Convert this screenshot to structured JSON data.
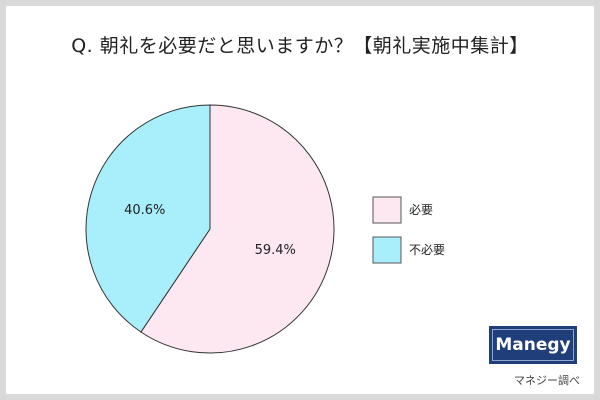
{
  "title": "Q. 朝礼を必要だと思いますか？【朝礼実施中集計】",
  "brand": "Manegy",
  "source": "マネジー調べ",
  "chart_data": {
    "type": "pie",
    "slices": [
      {
        "label": "必要",
        "value": 59.4,
        "value_label": "59.4%",
        "color": "#fde8f2"
      },
      {
        "label": "不必要",
        "value": 40.6,
        "value_label": "40.6%",
        "color": "#a9eefb"
      }
    ],
    "start": "12 o'clock",
    "direction": "clockwise",
    "legend_position": "right"
  }
}
